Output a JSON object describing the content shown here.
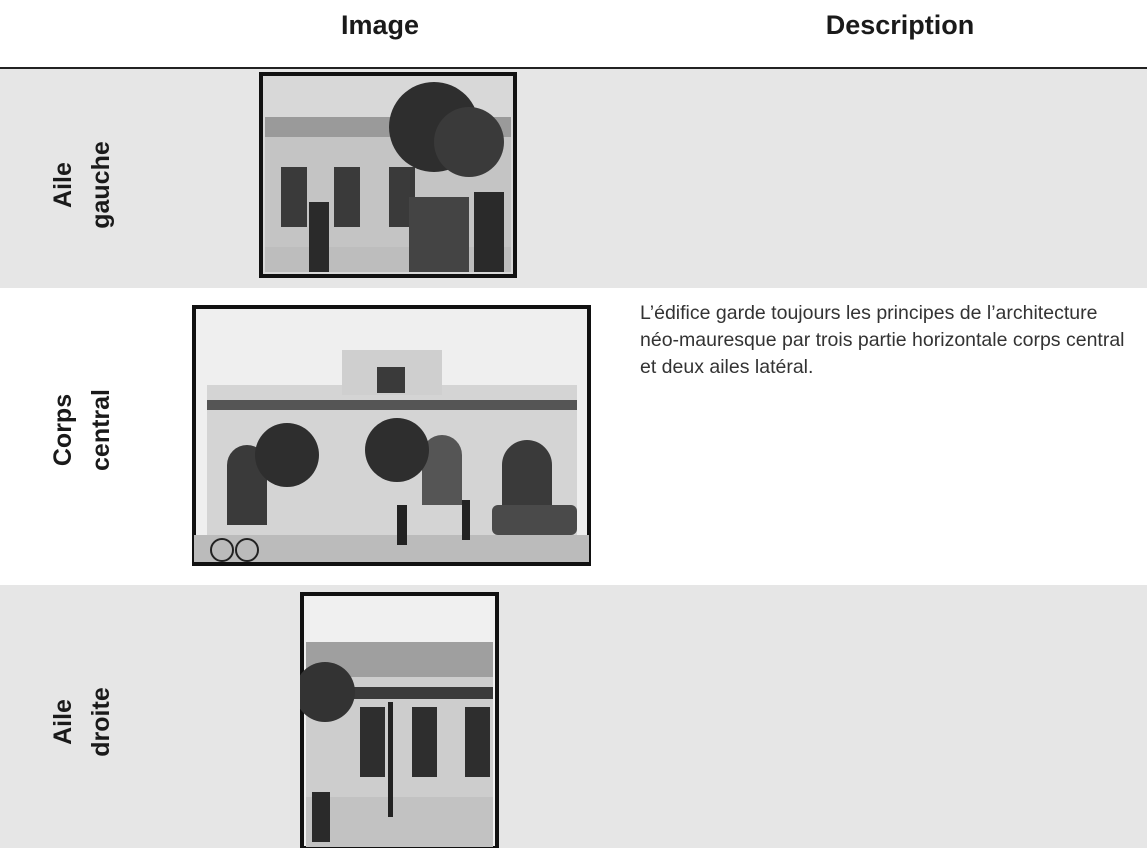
{
  "header": {
    "columns": [
      "Image",
      "Description"
    ]
  },
  "rows": [
    {
      "label": [
        "Aile",
        "gauche"
      ]
    },
    {
      "label": [
        "Corps",
        "central"
      ],
      "description": "L’édifice garde toujours les principes de l’architecture néo-mauresque par trois partie horizontale corps central  et deux ailes latéral."
    },
    {
      "label": [
        "Aile",
        "droite"
      ]
    }
  ]
}
